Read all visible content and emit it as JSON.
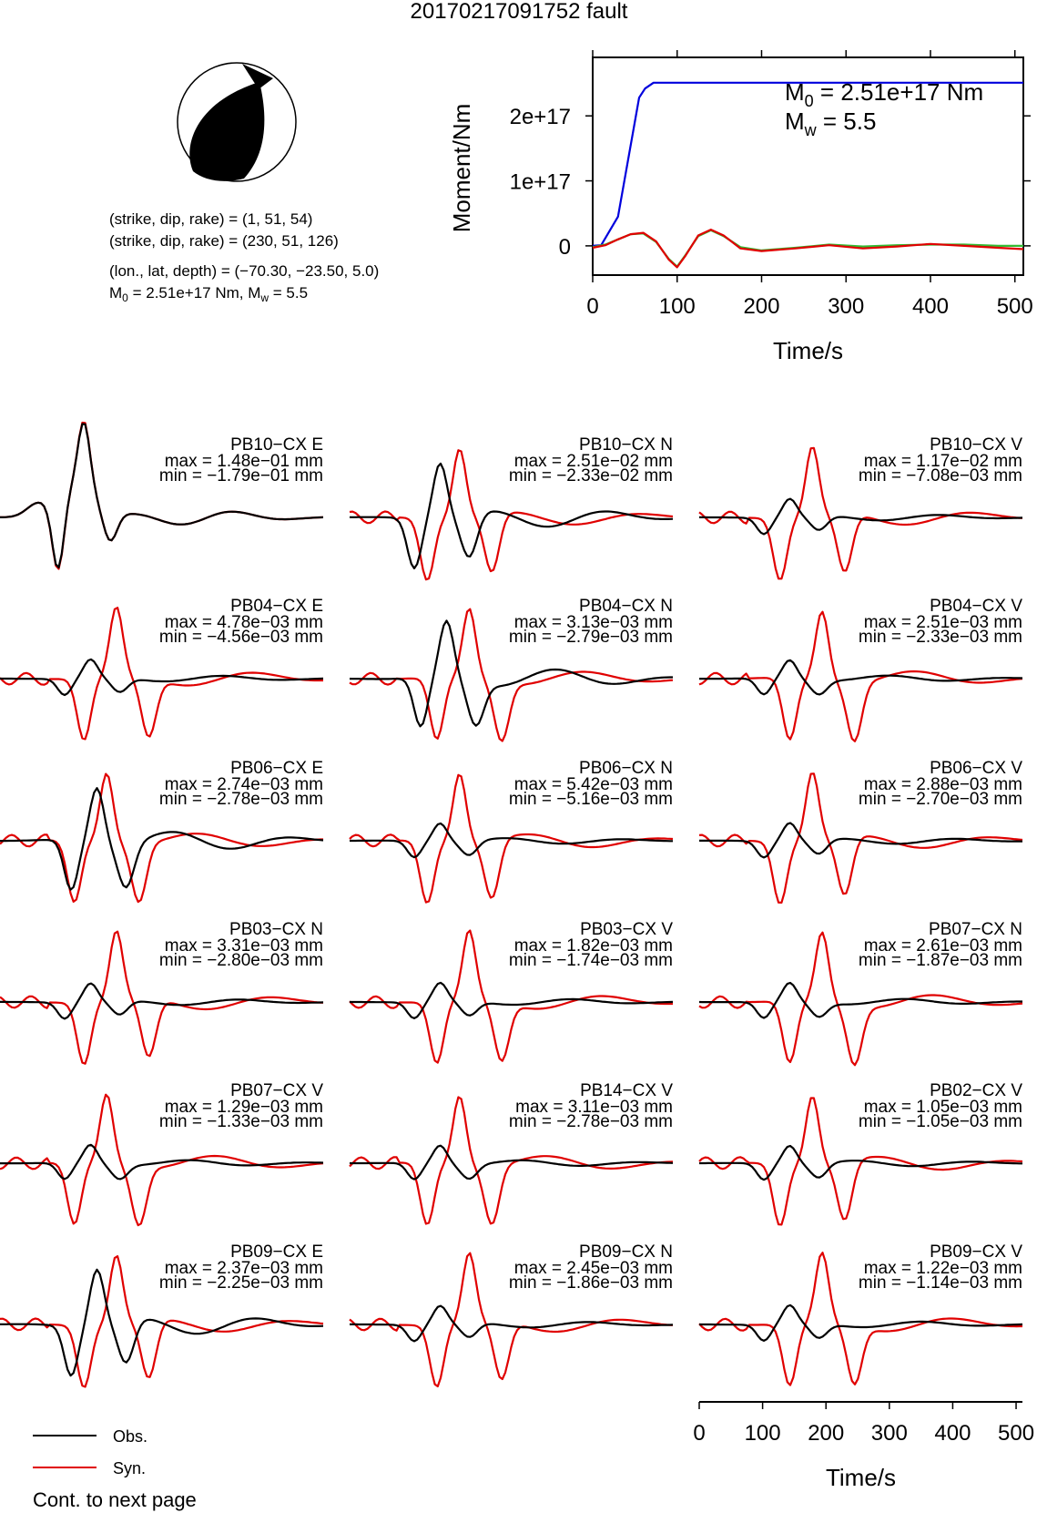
{
  "title": "20170217091752 fault",
  "beachball": {
    "plane1": "(strike, dip, rake) = (1, 51, 54)",
    "plane2": "(strike, dip, rake) = (230, 51, 126)",
    "location": "(lon., lat, depth) = (−70.30, −23.50, 5.0)",
    "moment_prefix": "M",
    "moment_text": " = 2.51e+17 Nm, M",
    "mw_text": " = 5.5",
    "sub0": "0",
    "subw": "w"
  },
  "moment_plot": {
    "m0_text": " = 2.51e+17 Nm",
    "mw_text": " = 5.5",
    "m_letter": "M",
    "sub0": "0",
    "subw": "w"
  },
  "legend": {
    "obs": "Obs.",
    "syn": "Syn."
  },
  "footer": "Cont. to next page",
  "colors": {
    "obs": "#000000",
    "syn": "#e00000",
    "moment": "#0000dd",
    "green": "#33bb33"
  },
  "chart_data": [
    {
      "type": "line",
      "name": "moment-rate",
      "xlabel": "Time/s",
      "ylabel": "Moment/Nm",
      "xlim": [
        0,
        510
      ],
      "ylim": [
        -4.5e+16,
        2.9e+17
      ],
      "xticks": [
        "0",
        "100",
        "200",
        "300",
        "400",
        "500"
      ],
      "yticks": [
        "0",
        "1e+17",
        "2e+17"
      ],
      "series": [
        {
          "color": "#0000dd",
          "x": [
            0,
            10,
            30,
            55,
            62,
            72,
            510
          ],
          "y": [
            0,
            1000000000000000.0,
            4.5e+16,
            2.28e+17,
            2.42e+17,
            2.51e+17,
            2.51e+17
          ]
        },
        {
          "color": "#33bb33",
          "x": [
            0,
            15,
            30,
            45,
            60,
            75,
            90,
            100,
            110,
            125,
            140,
            155,
            175,
            200,
            240,
            280,
            320,
            360,
            400,
            440,
            480,
            510
          ],
          "y": [
            -2000000000000000.0,
            2000000000000000.0,
            1e+16,
            1.8e+16,
            1.9e+16,
            6000000000000000.0,
            -2e+16,
            -3.2e+16,
            -1.4e+16,
            1.5e+16,
            2.4e+16,
            1.5e+16,
            -2000000000000000.0,
            -7000000000000000.0,
            -3000000000000000.0,
            2000000000000000.0,
            -1000000000000000.0,
            1000000000000000.0,
            2000000000000000.0,
            2000000000000000.0,
            0,
            0
          ]
        },
        {
          "color": "#e00000",
          "x": [
            0,
            15,
            30,
            45,
            60,
            75,
            90,
            100,
            110,
            125,
            140,
            155,
            175,
            200,
            240,
            280,
            320,
            360,
            400,
            440,
            480,
            510
          ],
          "y": [
            -3000000000000000.0,
            1000000000000000.0,
            1e+16,
            1.8e+16,
            2e+16,
            7000000000000000.0,
            -2.1e+16,
            -3.3e+16,
            -1.5e+16,
            1.6e+16,
            2.5e+16,
            1.6e+16,
            -4000000000000000.0,
            -8000000000000000.0,
            -4000000000000000.0,
            1000000000000000.0,
            -4000000000000000.0,
            -1000000000000000.0,
            3000000000000000.0,
            0,
            -3000000000000000.0,
            -5000000000000000.0
          ]
        }
      ]
    },
    {
      "type": "line",
      "name": "waveforms",
      "xlabel": "Time/s",
      "xlim": [
        0,
        510
      ],
      "xticks": [
        "0",
        "100",
        "200",
        "300",
        "400",
        "500"
      ],
      "legend": [
        "Obs.",
        "Syn."
      ],
      "panels": [
        {
          "station": "PB10−CX E",
          "max": "max = 1.48e−01 mm",
          "min": "min = −1.79e−01 mm"
        },
        {
          "station": "PB10−CX N",
          "max": "max = 2.51e−02 mm",
          "min": "min = −2.33e−02 mm"
        },
        {
          "station": "PB10−CX V",
          "max": "max = 1.17e−02 mm",
          "min": "min = −7.08e−03 mm"
        },
        {
          "station": "PB04−CX E",
          "max": "max = 4.78e−03 mm",
          "min": "min = −4.56e−03 mm"
        },
        {
          "station": "PB04−CX N",
          "max": "max = 3.13e−03 mm",
          "min": "min = −2.79e−03 mm"
        },
        {
          "station": "PB04−CX V",
          "max": "max = 2.51e−03 mm",
          "min": "min = −2.33e−03 mm"
        },
        {
          "station": "PB06−CX E",
          "max": "max = 2.74e−03 mm",
          "min": "min = −2.78e−03 mm"
        },
        {
          "station": "PB06−CX N",
          "max": "max = 5.42e−03 mm",
          "min": "min = −5.16e−03 mm"
        },
        {
          "station": "PB06−CX V",
          "max": "max = 2.88e−03 mm",
          "min": "min = −2.70e−03 mm"
        },
        {
          "station": "PB03−CX N",
          "max": "max = 3.31e−03 mm",
          "min": "min = −2.80e−03 mm"
        },
        {
          "station": "PB03−CX V",
          "max": "max = 1.82e−03 mm",
          "min": "min = −1.74e−03 mm"
        },
        {
          "station": "PB07−CX N",
          "max": "max = 2.61e−03 mm",
          "min": "min = −1.87e−03 mm"
        },
        {
          "station": "PB07−CX V",
          "max": "max = 1.29e−03 mm",
          "min": "min = −1.33e−03 mm"
        },
        {
          "station": "PB14−CX V",
          "max": "max = 3.11e−03 mm",
          "min": "min = −2.78e−03 mm"
        },
        {
          "station": "PB02−CX V",
          "max": "max = 1.05e−03 mm",
          "min": "min = −1.05e−03 mm"
        },
        {
          "station": "PB09−CX E",
          "max": "max = 2.37e−03 mm",
          "min": "min = −2.25e−03 mm"
        },
        {
          "station": "PB09−CX N",
          "max": "max = 2.45e−03 mm",
          "min": "min = −1.86e−03 mm"
        },
        {
          "station": "PB09−CX V",
          "max": "max = 1.22e−03 mm",
          "min": "min = −1.14e−03 mm"
        }
      ]
    }
  ]
}
